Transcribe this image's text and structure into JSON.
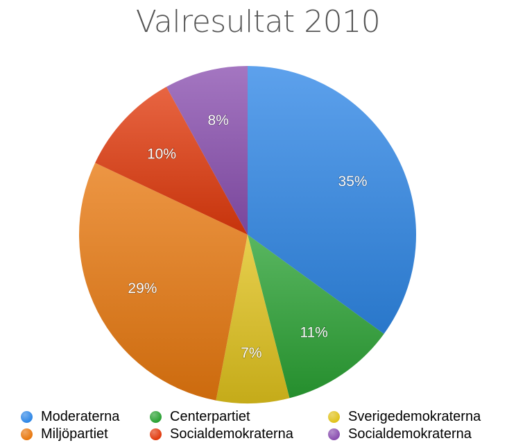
{
  "chart_data": {
    "type": "pie",
    "title": "Valresultat 2010",
    "slices": [
      {
        "name": "Moderaterna",
        "value": 35,
        "label": "35%",
        "color": "#2f87e6"
      },
      {
        "name": "Centerpartiet",
        "value": 11,
        "label": "11%",
        "color": "#2aa133"
      },
      {
        "name": "Sverigedemokraterna",
        "value": 7,
        "label": "7%",
        "color": "#e0c21c"
      },
      {
        "name": "Miljöpartiet",
        "value": 29,
        "label": "29%",
        "color": "#e8780f"
      },
      {
        "name": "Socialdemokraterna",
        "value": 10,
        "label": "10%",
        "color": "#e13a0d"
      },
      {
        "name": "Socialdemokraterna",
        "value": 8,
        "label": "8%",
        "color": "#8a4fb0"
      }
    ],
    "start_angle": "12 o'clock",
    "direction": "clockwise",
    "legend_position": "bottom"
  },
  "legend": {
    "items": [
      {
        "label": "Moderaterna",
        "color": "#2f87e6"
      },
      {
        "label": "Centerpartiet",
        "color": "#2aa133"
      },
      {
        "label": "Sverigedemokraterna",
        "color": "#e0c21c"
      },
      {
        "label": "Miljöpartiet",
        "color": "#e8780f"
      },
      {
        "label": "Socialdemokraterna",
        "color": "#e13a0d"
      },
      {
        "label": "Socialdemokraterna",
        "color": "#8a4fb0"
      }
    ]
  }
}
